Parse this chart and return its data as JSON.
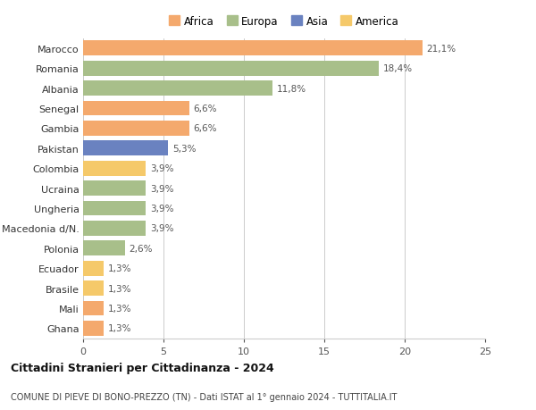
{
  "countries": [
    "Marocco",
    "Romania",
    "Albania",
    "Senegal",
    "Gambia",
    "Pakistan",
    "Colombia",
    "Ucraina",
    "Ungheria",
    "Macedonia d/N.",
    "Polonia",
    "Ecuador",
    "Brasile",
    "Mali",
    "Ghana"
  ],
  "values": [
    21.1,
    18.4,
    11.8,
    6.6,
    6.6,
    5.3,
    3.9,
    3.9,
    3.9,
    3.9,
    2.6,
    1.3,
    1.3,
    1.3,
    1.3
  ],
  "labels": [
    "21,1%",
    "18,4%",
    "11,8%",
    "6,6%",
    "6,6%",
    "5,3%",
    "3,9%",
    "3,9%",
    "3,9%",
    "3,9%",
    "2,6%",
    "1,3%",
    "1,3%",
    "1,3%",
    "1,3%"
  ],
  "colors": [
    "#F4A96D",
    "#A8BF8A",
    "#A8BF8A",
    "#F4A96D",
    "#F4A96D",
    "#6A82C0",
    "#F5C96A",
    "#A8BF8A",
    "#A8BF8A",
    "#A8BF8A",
    "#A8BF8A",
    "#F5C96A",
    "#F5C96A",
    "#F4A96D",
    "#F4A96D"
  ],
  "legend_labels": [
    "Africa",
    "Europa",
    "Asia",
    "America"
  ],
  "legend_colors": [
    "#F4A96D",
    "#A8BF8A",
    "#6A82C0",
    "#F5C96A"
  ],
  "title1": "Cittadini Stranieri per Cittadinanza - 2024",
  "title2": "COMUNE DI PIEVE DI BONO-PREZZO (TN) - Dati ISTAT al 1° gennaio 2024 - TUTTITALIA.IT",
  "xlim": [
    0,
    25
  ],
  "xticks": [
    0,
    5,
    10,
    15,
    20,
    25
  ],
  "background_color": "#ffffff",
  "grid_color": "#cccccc"
}
